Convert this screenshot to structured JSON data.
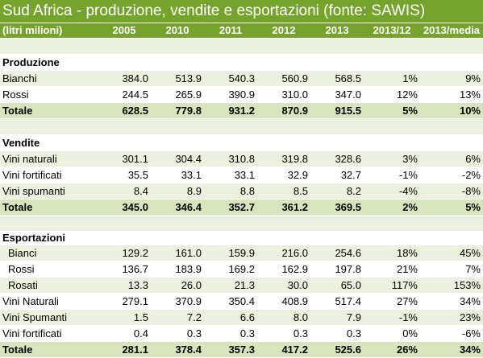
{
  "title": "Sud Africa - produzione, vendite e esportazioni (fonte: SAWIS)",
  "headers": [
    "(litri milioni)",
    "2005",
    "2010",
    "2011",
    "2012",
    "2013",
    "2013/12",
    "2013/media"
  ],
  "produzione": {
    "label": "Produzione",
    "rows": [
      {
        "label": "Bianchi",
        "values": [
          "384.0",
          "513.9",
          "540.3",
          "560.9",
          "568.5",
          "1%",
          "9%"
        ]
      },
      {
        "label": "Rossi",
        "values": [
          "244.5",
          "265.9",
          "390.9",
          "310.0",
          "347.0",
          "12%",
          "13%"
        ]
      }
    ],
    "total": {
      "label": "Totale",
      "values": [
        "628.5",
        "779.8",
        "931.2",
        "870.9",
        "915.5",
        "5%",
        "10%"
      ]
    }
  },
  "vendite": {
    "label": "Vendite",
    "rows": [
      {
        "label": "Vini naturali",
        "values": [
          "301.1",
          "304.4",
          "310.8",
          "319.8",
          "328.6",
          "3%",
          "6%"
        ]
      },
      {
        "label": "Vini fortificati",
        "values": [
          "35.5",
          "33.1",
          "33.1",
          "32.9",
          "32.7",
          "-1%",
          "-2%"
        ]
      },
      {
        "label": "Vini spumanti",
        "values": [
          "8.4",
          "8.9",
          "8.8",
          "8.5",
          "8.2",
          "-4%",
          "-8%"
        ]
      }
    ],
    "total": {
      "label": "Totale",
      "values": [
        "345.0",
        "346.4",
        "352.7",
        "361.2",
        "369.5",
        "2%",
        "5%"
      ]
    }
  },
  "esportazioni": {
    "label": "Esportazioni",
    "rows": [
      {
        "label": "Bianci",
        "values": [
          "129.2",
          "161.0",
          "159.9",
          "216.0",
          "254.6",
          "18%",
          "45%"
        ]
      },
      {
        "label": "Rossi",
        "values": [
          "136.7",
          "183.9",
          "169.2",
          "162.9",
          "197.8",
          "21%",
          "7%"
        ]
      },
      {
        "label": "Rosati",
        "values": [
          "13.3",
          "26.0",
          "21.3",
          "30.0",
          "65.0",
          "117%",
          "153%"
        ]
      },
      {
        "label": "Vini Naturali",
        "values": [
          "279.1",
          "370.9",
          "350.4",
          "408.9",
          "517.4",
          "27%",
          "34%"
        ]
      },
      {
        "label": "Vini Spumanti",
        "values": [
          "1.5",
          "7.2",
          "6.6",
          "8.0",
          "7.9",
          "-1%",
          "23%"
        ]
      },
      {
        "label": "Vini fortificati",
        "values": [
          "0.4",
          "0.3",
          "0.3",
          "0.3",
          "0.3",
          "0%",
          "-6%"
        ]
      }
    ],
    "total": {
      "label": "Totale",
      "values": [
        "281.1",
        "378.4",
        "357.3",
        "417.2",
        "525.6",
        "26%",
        "34%"
      ]
    }
  },
  "colors": {
    "header_green": "#76a32c",
    "band_light": "#ebf1de",
    "total_band": "#d7e4bc"
  }
}
